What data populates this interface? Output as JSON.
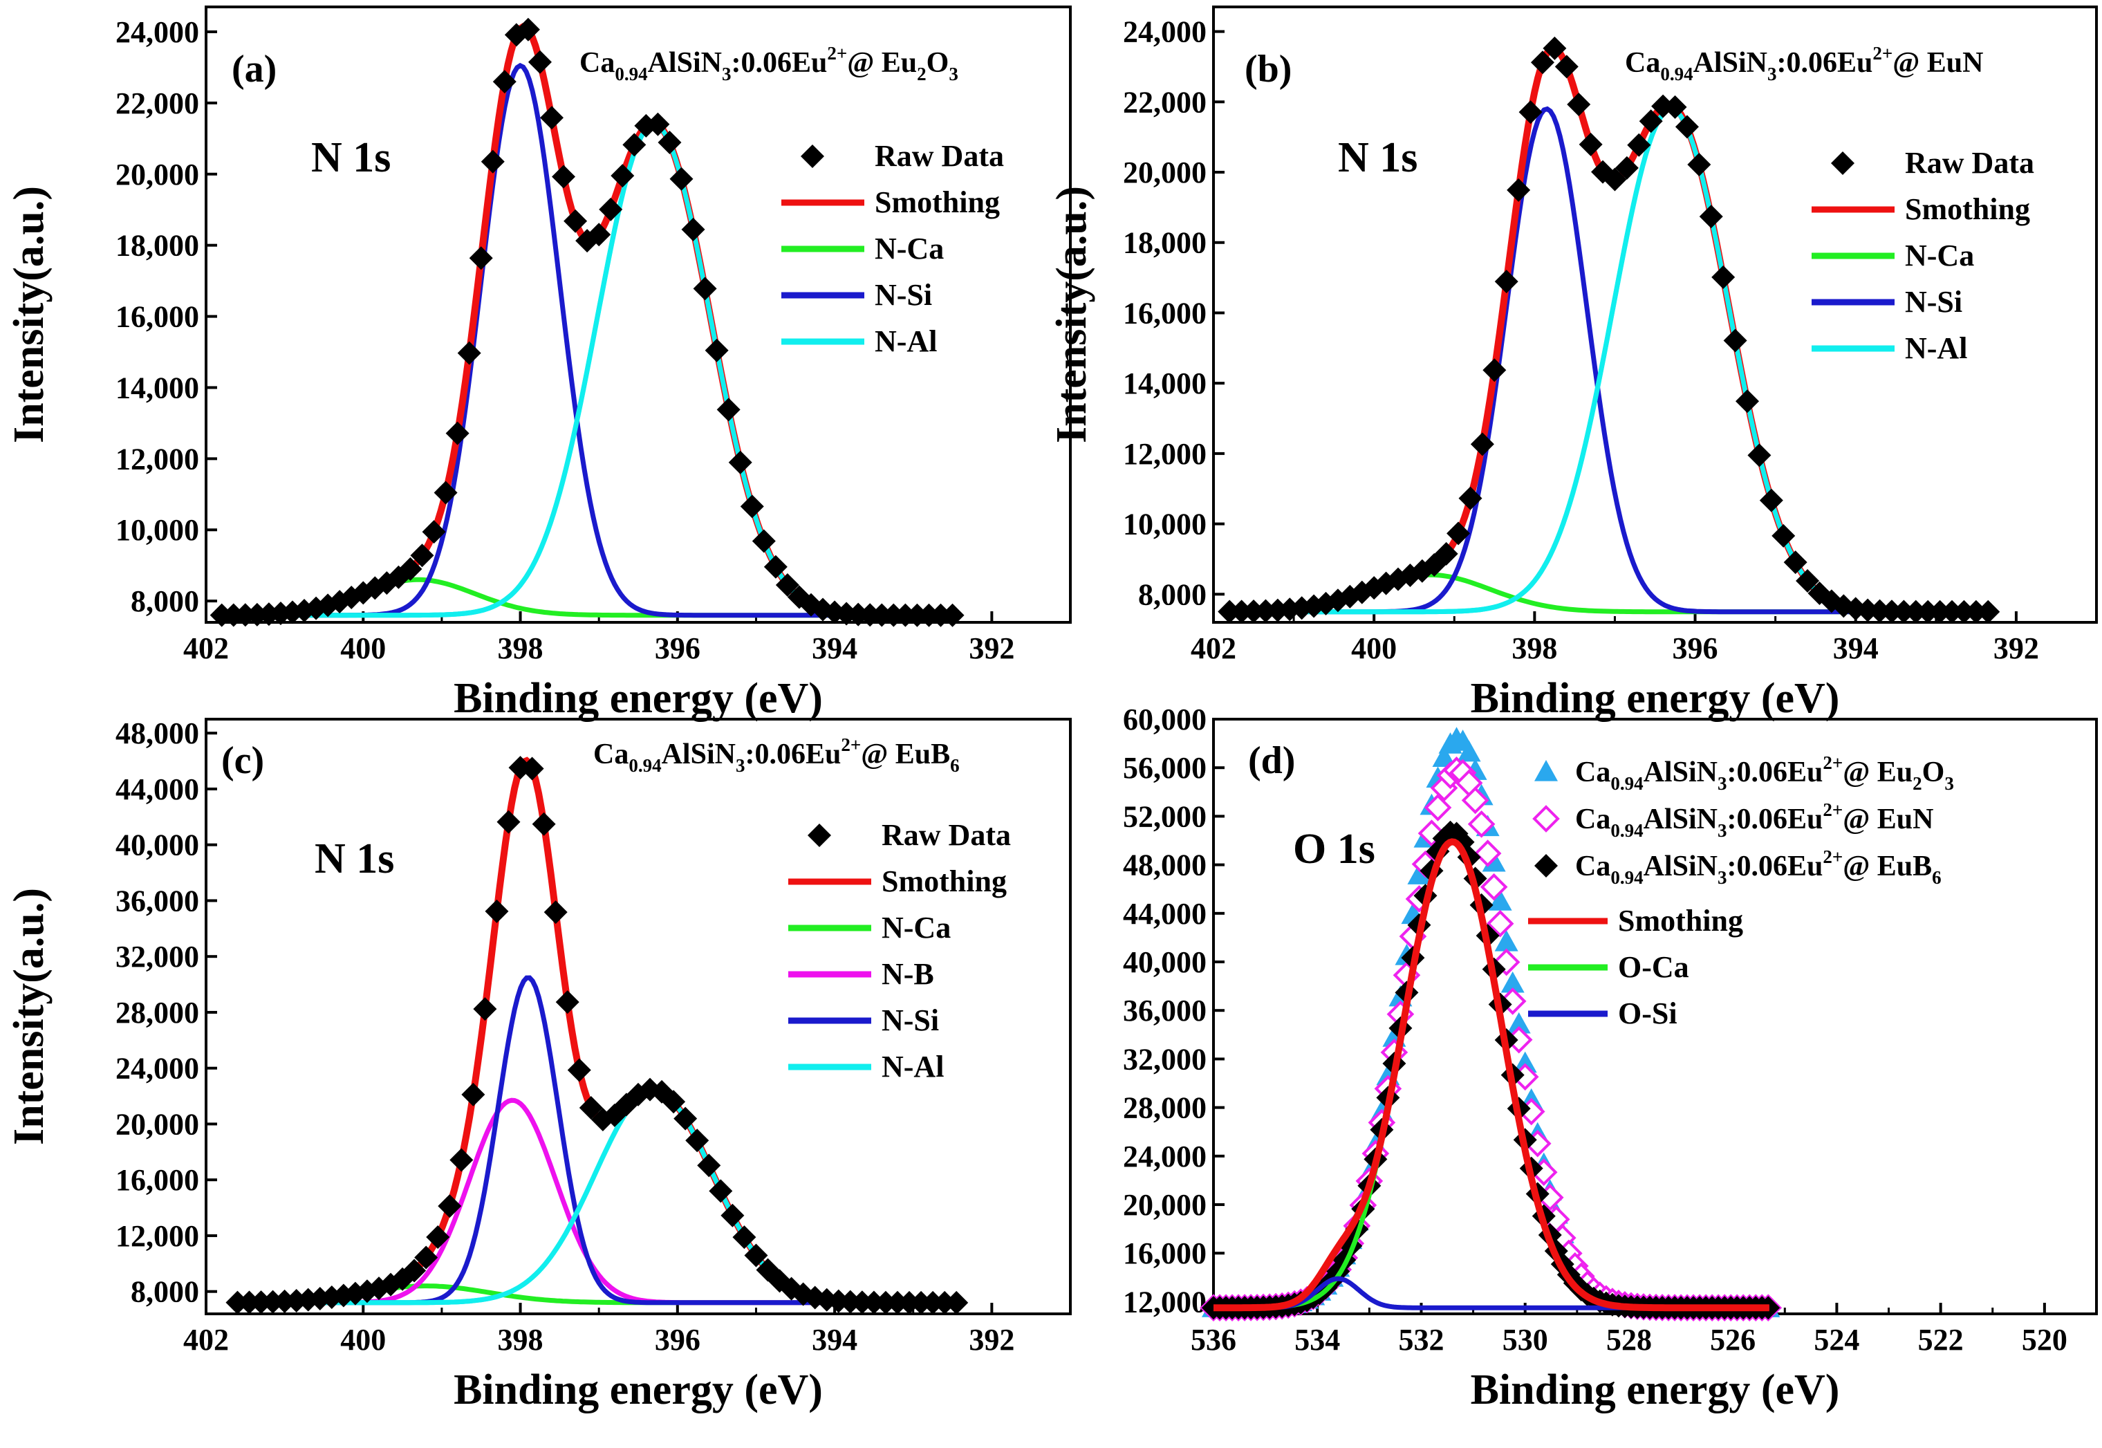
{
  "chart_data": [
    {
      "id": "a",
      "type": "line",
      "panel_label": "(a)",
      "core_label": "N 1s",
      "sample": {
        "base": "Ca",
        "sub1": "0.94",
        "mid": "AlSiN",
        "sub2": "3",
        "dop": ":0.06Eu",
        "sup": "2+",
        "at": "@ Eu",
        "sub3": "2",
        "tail": "O",
        "sub4": "3"
      },
      "xlabel": "Binding energy (eV)",
      "ylabel": "Intensity(a.u.)",
      "xlim": [
        402,
        391
      ],
      "ylim": [
        7400,
        24700
      ],
      "xticks": [
        402,
        400,
        398,
        396,
        394,
        392
      ],
      "yticks": [
        8000,
        10000,
        12000,
        14000,
        16000,
        18000,
        20000,
        22000,
        24000
      ],
      "tick_labels_y": [
        "8,000",
        "10,000",
        "12,000",
        "14,000",
        "16,000",
        "18,000",
        "20,000",
        "22,000",
        "24,000"
      ],
      "x_range": [
        401.8,
        392.5
      ],
      "baseline": 7600,
      "components": [
        {
          "name": "N-Ca",
          "color": "#22ee22",
          "center": 399.3,
          "amp": 1000,
          "sigma": 0.72
        },
        {
          "name": "N-Si",
          "color": "#1a1acc",
          "center": 398.0,
          "amp": 15450,
          "sigma": 0.5
        },
        {
          "name": "N-Al",
          "color": "#11eeee",
          "center": 396.3,
          "amp": 13800,
          "sigma": 0.72
        }
      ],
      "smooth": {
        "name": "Smothing",
        "color": "#ee1111"
      },
      "raw": {
        "name": "Raw Data",
        "color": "#000000",
        "marker": "diamond",
        "step": 0.15
      },
      "legend": [
        "Raw Data",
        "Smothing",
        "N-Ca",
        "N-Si",
        "N-Al"
      ]
    },
    {
      "id": "b",
      "type": "line",
      "panel_label": "(b)",
      "core_label": "N 1s",
      "sample": {
        "base": "Ca",
        "sub1": "0.94",
        "mid": "AlSiN",
        "sub2": "3",
        "dop": ":0.06Eu",
        "sup": "2+",
        "at": "@ EuN",
        "sub3": "",
        "tail": "",
        "sub4": ""
      },
      "xlabel": "Binding energy (eV)",
      "ylabel": "Intensity(a.u.)",
      "xlim": [
        402,
        391
      ],
      "ylim": [
        7200,
        24700
      ],
      "xticks": [
        402,
        400,
        398,
        396,
        394,
        392
      ],
      "yticks": [
        8000,
        10000,
        12000,
        14000,
        16000,
        18000,
        20000,
        22000,
        24000
      ],
      "tick_labels_y": [
        "8,000",
        "10,000",
        "12,000",
        "14,000",
        "16,000",
        "18,000",
        "20,000",
        "22,000",
        "24,000"
      ],
      "x_range": [
        401.8,
        392.3
      ],
      "baseline": 7500,
      "components": [
        {
          "name": "N-Ca",
          "color": "#22ee22",
          "center": 399.3,
          "amp": 1050,
          "sigma": 0.75
        },
        {
          "name": "N-Si",
          "color": "#1a1acc",
          "center": 397.85,
          "amp": 14300,
          "sigma": 0.5
        },
        {
          "name": "N-Al",
          "color": "#11eeee",
          "center": 396.3,
          "amp": 14300,
          "sigma": 0.72
        }
      ],
      "smooth": {
        "name": "Smothing",
        "color": "#ee1111"
      },
      "raw": {
        "name": "Raw Data",
        "color": "#000000",
        "marker": "diamond",
        "step": 0.15
      },
      "legend": [
        "Raw Data",
        "Smothing",
        "N-Ca",
        "N-Si",
        "N-Al"
      ]
    },
    {
      "id": "c",
      "type": "line",
      "panel_label": "(c)",
      "core_label": "N 1s",
      "sample": {
        "base": "Ca",
        "sub1": "0.94",
        "mid": "AlSiN",
        "sub2": "3",
        "dop": ":0.06Eu",
        "sup": "2+",
        "at": "@ EuB",
        "sub3": "6",
        "tail": "",
        "sub4": ""
      },
      "xlabel": "Binding energy (eV)",
      "ylabel": "Intensity(a.u.)",
      "xlim": [
        402,
        391
      ],
      "ylim": [
        6400,
        49000
      ],
      "xticks": [
        402,
        400,
        398,
        396,
        394,
        392
      ],
      "yticks": [
        8000,
        12000,
        16000,
        20000,
        24000,
        28000,
        32000,
        36000,
        40000,
        44000,
        48000
      ],
      "tick_labels_y": [
        "8,000",
        "12,000",
        "16,000",
        "20,000",
        "24,000",
        "28,000",
        "32,000",
        "36,000",
        "40,000",
        "44,000",
        "48,000"
      ],
      "x_range": [
        401.6,
        392.4
      ],
      "baseline": 7200,
      "components": [
        {
          "name": "N-Ca",
          "color": "#22ee22",
          "center": 399.2,
          "amp": 1200,
          "sigma": 0.8
        },
        {
          "name": "N-B",
          "color": "#ee11ee",
          "center": 398.1,
          "amp": 14500,
          "sigma": 0.55
        },
        {
          "name": "N-Si",
          "color": "#1a1acc",
          "center": 397.9,
          "amp": 23300,
          "sigma": 0.38
        },
        {
          "name": "N-Al",
          "color": "#11eeee",
          "center": 396.3,
          "amp": 15200,
          "sigma": 0.75
        }
      ],
      "smooth": {
        "name": "Smothing",
        "color": "#ee1111"
      },
      "raw": {
        "name": "Raw Data",
        "color": "#000000",
        "marker": "diamond",
        "step": 0.15
      },
      "legend": [
        "Raw Data",
        "Smothing",
        "N-Ca",
        "N-B",
        "N-Si",
        "N-Al"
      ]
    },
    {
      "id": "d",
      "type": "line",
      "panel_label": "(d)",
      "core_label": "O 1s",
      "xlabel": "Binding energy (eV)",
      "ylabel": "",
      "xlim": [
        536,
        519
      ],
      "ylim": [
        11000,
        60000
      ],
      "xticks": [
        536,
        534,
        532,
        530,
        528,
        526,
        524,
        522,
        520
      ],
      "yticks": [
        12000,
        16000,
        20000,
        24000,
        28000,
        32000,
        36000,
        40000,
        44000,
        48000,
        52000,
        56000,
        60000
      ],
      "tick_labels_y": [
        "12,000",
        "16,000",
        "20,000",
        "24,000",
        "28,000",
        "32,000",
        "36,000",
        "40,000",
        "44,000",
        "48,000",
        "52,000",
        "56,000",
        "60,000"
      ],
      "x_range": [
        536,
        525.3
      ],
      "baseline": 11500,
      "components": [
        {
          "name": "O-Ca",
          "color": "#22ee22",
          "center": 531.4,
          "amp": 38400,
          "sigma": 0.95
        },
        {
          "name": "O-Si",
          "color": "#1a1acc",
          "center": 533.6,
          "amp": 2400,
          "sigma": 0.4
        }
      ],
      "smooth": {
        "name": "Smothing",
        "color": "#ee1111"
      },
      "raw_series": [
        {
          "sample": {
            "base": "Ca",
            "sub1": "0.94",
            "mid": "AlSiN",
            "sub2": "3",
            "dop": ":0.06Eu",
            "sup": "2+",
            "at": "@ Eu",
            "sub3": "2",
            "tail": "O",
            "sub4": "3"
          },
          "color": "#2aa8ee",
          "marker": "triangle",
          "center": 531.3,
          "amp": 46900,
          "sigma": 1.0
        },
        {
          "sample": {
            "base": "Ca",
            "sub1": "0.94",
            "mid": "AlSiN",
            "sub2": "3",
            "dop": ":0.06Eu",
            "sup": "2+",
            "at": "@ EuN",
            "sub3": "",
            "tail": "",
            "sub4": ""
          },
          "color": "#ee22ee",
          "marker": "diamond-open",
          "center": 531.3,
          "amp": 44300,
          "sigma": 1.0
        },
        {
          "sample": {
            "base": "Ca",
            "sub1": "0.94",
            "mid": "AlSiN",
            "sub2": "3",
            "dop": ":0.06Eu",
            "sup": "2+",
            "at": "@ EuB",
            "sub3": "6",
            "tail": "",
            "sub4": ""
          },
          "color": "#000000",
          "marker": "diamond",
          "center": 531.4,
          "amp": 39200,
          "sigma": 0.97
        }
      ],
      "legend_lines": [
        "Smothing",
        "O-Ca",
        "O-Si"
      ]
    }
  ]
}
